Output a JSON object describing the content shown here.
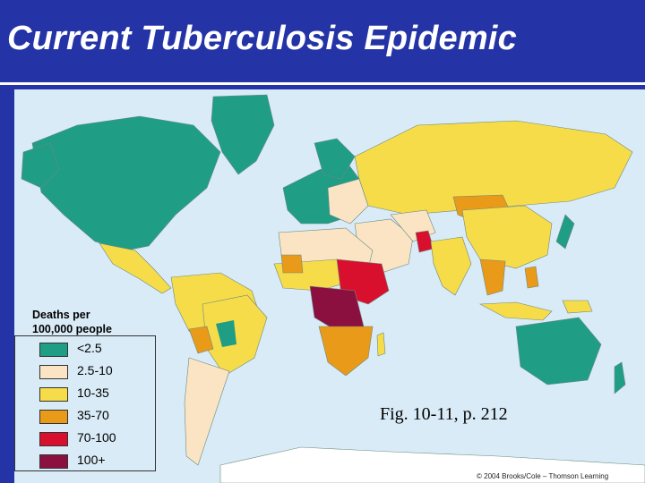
{
  "slide": {
    "title": "Current Tuberculosis Epidemic",
    "caption": "Fig. 10-11, p. 212",
    "copyright": "© 2004 Brooks/Cole – Thomson Learning"
  },
  "legend": {
    "heading_line1": "Deaths per",
    "heading_line2": "100,000 people",
    "items": [
      {
        "label": "<2.5",
        "color": "#1f9e85"
      },
      {
        "label": "2.5-10",
        "color": "#fae4c4"
      },
      {
        "label": "10-35",
        "color": "#f7dc4a"
      },
      {
        "label": "35-70",
        "color": "#e99a18"
      },
      {
        "label": "70-100",
        "color": "#d8102e"
      },
      {
        "label": "100+",
        "color": "#8b1040"
      }
    ]
  },
  "colors": {
    "background": "#2433a6",
    "ocean": "#d9ebf7",
    "no_data": "#ffffff"
  }
}
